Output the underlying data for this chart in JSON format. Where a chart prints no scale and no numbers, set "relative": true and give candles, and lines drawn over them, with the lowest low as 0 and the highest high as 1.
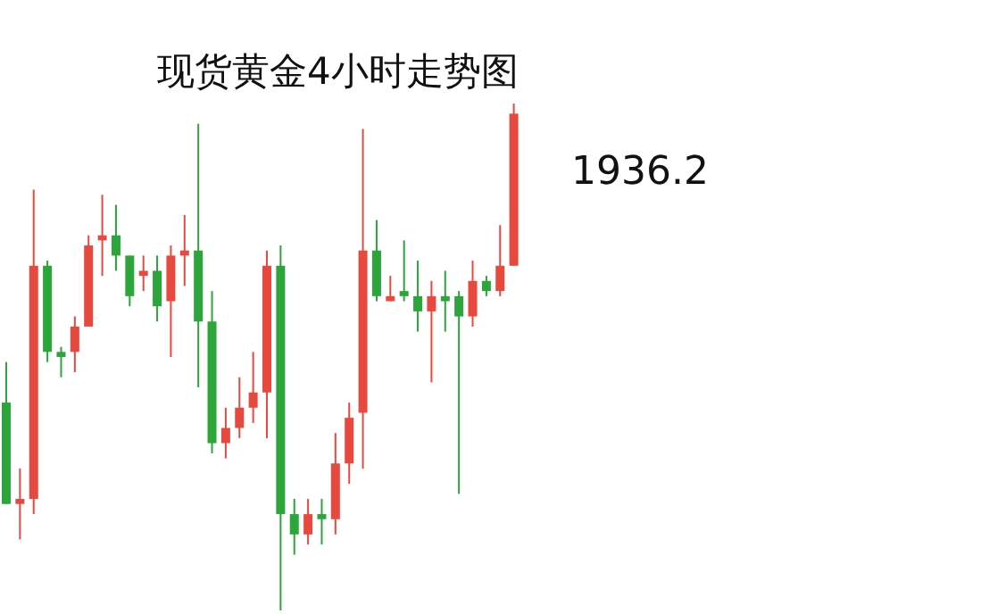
{
  "chart_data": {
    "type": "candlestick",
    "title": "现货黄金4小时走势图",
    "relative": true,
    "categories": [
      null,
      null,
      null,
      null,
      null,
      null,
      null,
      null,
      null,
      null,
      null,
      null,
      null,
      null,
      null,
      null,
      null,
      null,
      null,
      null,
      null,
      null,
      null,
      null,
      null,
      null,
      null,
      null,
      null,
      null,
      null,
      null,
      null,
      null,
      null,
      null,
      null,
      null
    ],
    "ohlc": [
      [
        0.41,
        0.49,
        0.21,
        0.21
      ],
      [
        0.21,
        0.28,
        0.14,
        0.22
      ],
      [
        0.22,
        0.83,
        0.19,
        0.68
      ],
      [
        0.68,
        0.69,
        0.49,
        0.51
      ],
      [
        0.51,
        0.52,
        0.46,
        0.5
      ],
      [
        0.51,
        0.58,
        0.47,
        0.56
      ],
      [
        0.56,
        0.74,
        0.56,
        0.72
      ],
      [
        0.73,
        0.82,
        0.66,
        0.74
      ],
      [
        0.74,
        0.8,
        0.67,
        0.7
      ],
      [
        0.7,
        0.7,
        0.6,
        0.62
      ],
      [
        0.66,
        0.7,
        0.63,
        0.67
      ],
      [
        0.67,
        0.7,
        0.57,
        0.6
      ],
      [
        0.61,
        0.72,
        0.5,
        0.7
      ],
      [
        0.7,
        0.78,
        0.64,
        0.71
      ],
      [
        0.71,
        0.96,
        0.44,
        0.57
      ],
      [
        0.57,
        0.63,
        0.31,
        0.33
      ],
      [
        0.33,
        0.4,
        0.3,
        0.36
      ],
      [
        0.36,
        0.46,
        0.34,
        0.4
      ],
      [
        0.4,
        0.51,
        0.37,
        0.43
      ],
      [
        0.43,
        0.71,
        0.34,
        0.68
      ],
      [
        0.68,
        0.72,
        0,
        0.19
      ],
      [
        0.19,
        0.22,
        0.11,
        0.15
      ],
      [
        0.15,
        0.22,
        0.13,
        0.19
      ],
      [
        0.19,
        0.22,
        0.13,
        0.18
      ],
      [
        0.18,
        0.35,
        0.15,
        0.29
      ],
      [
        0.29,
        0.41,
        0.25,
        0.38
      ],
      [
        0.39,
        0.95,
        0.28,
        0.71
      ],
      [
        0.71,
        0.77,
        0.61,
        0.62
      ],
      [
        0.61,
        0.66,
        0.61,
        0.62
      ],
      [
        0.63,
        0.73,
        0.61,
        0.62
      ],
      [
        0.62,
        0.69,
        0.55,
        0.59
      ],
      [
        0.59,
        0.65,
        0.45,
        0.62
      ],
      [
        0.62,
        0.67,
        0.55,
        0.61
      ],
      [
        0.62,
        0.63,
        0.23,
        0.58
      ],
      [
        0.58,
        0.69,
        0.56,
        0.65
      ],
      [
        0.65,
        0.66,
        0.62,
        0.63
      ],
      [
        0.63,
        0.76,
        0.62,
        0.68
      ],
      [
        0.68,
        1,
        0.68,
        0.98
      ]
    ],
    "colors": [
      "#2ca53a",
      "#e8493f",
      "#e8493f",
      "#2ca53a",
      "#2ca53a",
      "#e8493f",
      "#e8493f",
      "#e8493f",
      "#2ca53a",
      "#2ca53a",
      "#e8493f",
      "#2ca53a",
      "#e8493f",
      "#e8493f",
      "#2ca53a",
      "#2ca53a",
      "#e8493f",
      "#e8493f",
      "#e8493f",
      "#e8493f",
      "#2ca53a",
      "#2ca53a",
      "#e8493f",
      "#2ca53a",
      "#e8493f",
      "#e8493f",
      "#e8493f",
      "#2ca53a",
      "#e8493f",
      "#2ca53a",
      "#2ca53a",
      "#e8493f",
      "#2ca53a",
      "#2ca53a",
      "#e8493f",
      "#2ca53a",
      "#e8493f",
      "#e8493f"
    ],
    "annotations": [
      "1936.2"
    ]
  }
}
